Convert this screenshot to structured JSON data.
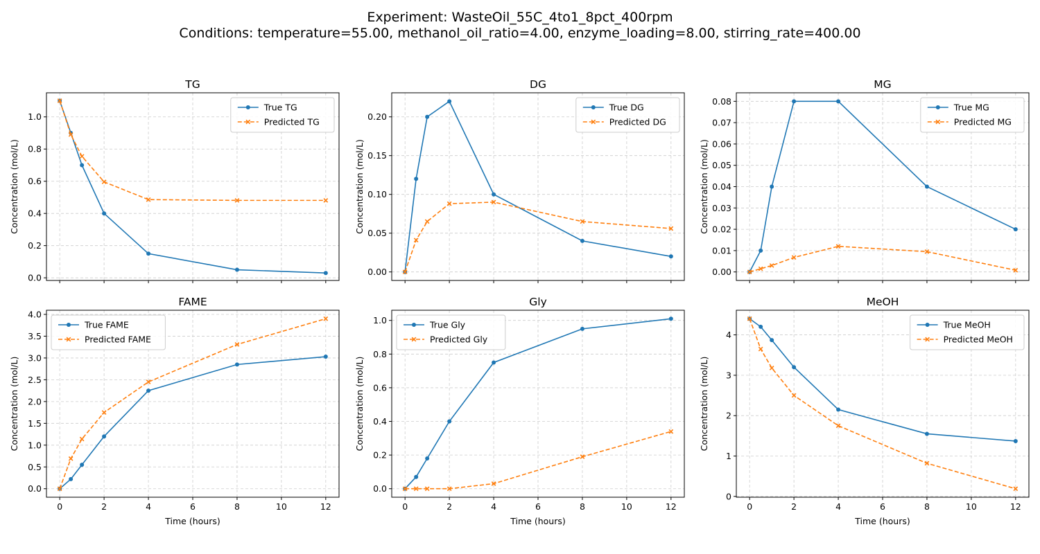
{
  "figure": {
    "title_line1": "Experiment: WasteOil_55C_4to1_8pct_400rpm",
    "title_line2": "Conditions: temperature=55.00, methanol_oil_ratio=4.00, enzyme_loading=8.00, stirring_rate=400.00"
  },
  "colors": {
    "true": "#1f77b4",
    "predicted": "#ff7f0e",
    "grid": "#cccccc"
  },
  "chart_data": [
    {
      "type": "line",
      "title": "TG",
      "xlabel": "",
      "ylabel": "Concentration (mol/L)",
      "x": [
        0,
        0.5,
        1,
        2,
        4,
        8,
        12
      ],
      "xlim": [
        -0.6,
        12.6
      ],
      "ylim": [
        -0.0165,
        1.1495
      ],
      "xticks": [
        0,
        2,
        4,
        6,
        8,
        10,
        12
      ],
      "show_xtick_labels": false,
      "yticks": [
        0.0,
        0.2,
        0.4,
        0.6,
        0.8,
        1.0
      ],
      "ytick_labels": [
        "0.0",
        "0.2",
        "0.4",
        "0.6",
        "0.8",
        "1.0"
      ],
      "grid": true,
      "legend": "top-right",
      "series": [
        {
          "name": "True TG",
          "role": "true",
          "values": [
            1.1,
            0.9,
            0.7,
            0.4,
            0.15,
            0.05,
            0.03
          ]
        },
        {
          "name": "Predicted TG",
          "role": "predicted",
          "values": [
            1.1,
            0.89,
            0.755,
            0.596,
            0.486,
            0.481,
            0.481
          ]
        }
      ]
    },
    {
      "type": "line",
      "title": "DG",
      "xlabel": "",
      "ylabel": "Concentration (mol/L)",
      "x": [
        0,
        0.5,
        1,
        2,
        4,
        8,
        12
      ],
      "xlim": [
        -0.6,
        12.6
      ],
      "ylim": [
        -0.011,
        0.231
      ],
      "xticks": [
        0,
        2,
        4,
        6,
        8,
        10,
        12
      ],
      "show_xtick_labels": false,
      "yticks": [
        0.0,
        0.05,
        0.1,
        0.15,
        0.2
      ],
      "ytick_labels": [
        "0.00",
        "0.05",
        "0.10",
        "0.15",
        "0.20"
      ],
      "grid": true,
      "legend": "top-right",
      "series": [
        {
          "name": "True DG",
          "role": "true",
          "values": [
            0.0,
            0.12,
            0.2,
            0.22,
            0.1,
            0.04,
            0.02
          ]
        },
        {
          "name": "Predicted DG",
          "role": "predicted",
          "values": [
            0.0,
            0.041,
            0.065,
            0.088,
            0.09,
            0.065,
            0.056
          ]
        }
      ]
    },
    {
      "type": "line",
      "title": "MG",
      "xlabel": "",
      "ylabel": "Concentration (mol/L)",
      "x": [
        0,
        0.5,
        1,
        2,
        4,
        8,
        12
      ],
      "xlim": [
        -0.6,
        12.6
      ],
      "ylim": [
        -0.004,
        0.084
      ],
      "xticks": [
        0,
        2,
        4,
        6,
        8,
        10,
        12
      ],
      "show_xtick_labels": false,
      "yticks": [
        0.0,
        0.01,
        0.02,
        0.03,
        0.04,
        0.05,
        0.06,
        0.07,
        0.08
      ],
      "ytick_labels": [
        "0.00",
        "0.01",
        "0.02",
        "0.03",
        "0.04",
        "0.05",
        "0.06",
        "0.07",
        "0.08"
      ],
      "grid": true,
      "legend": "top-right",
      "series": [
        {
          "name": "True MG",
          "role": "true",
          "values": [
            0.0,
            0.01,
            0.04,
            0.08,
            0.08,
            0.04,
            0.02
          ]
        },
        {
          "name": "Predicted MG",
          "role": "predicted",
          "values": [
            0.0,
            0.0015,
            0.003,
            0.0068,
            0.012,
            0.0095,
            0.0008
          ]
        }
      ]
    },
    {
      "type": "line",
      "title": "FAME",
      "xlabel": "Time (hours)",
      "ylabel": "Concentration (mol/L)",
      "x": [
        0,
        0.5,
        1,
        2,
        4,
        8,
        12
      ],
      "xlim": [
        -0.6,
        12.6
      ],
      "ylim": [
        -0.195,
        4.095
      ],
      "xticks": [
        0,
        2,
        4,
        6,
        8,
        10,
        12
      ],
      "show_xtick_labels": true,
      "yticks": [
        0.0,
        0.5,
        1.0,
        1.5,
        2.0,
        2.5,
        3.0,
        3.5,
        4.0
      ],
      "ytick_labels": [
        "0.0",
        "0.5",
        "1.0",
        "1.5",
        "2.0",
        "2.5",
        "3.0",
        "3.5",
        "4.0"
      ],
      "grid": true,
      "legend": "top-left",
      "series": [
        {
          "name": "True FAME",
          "role": "true",
          "values": [
            0.0,
            0.22,
            0.55,
            1.2,
            2.25,
            2.85,
            3.03
          ]
        },
        {
          "name": "Predicted FAME",
          "role": "predicted",
          "values": [
            0.0,
            0.69,
            1.14,
            1.75,
            2.45,
            3.31,
            3.9
          ]
        }
      ]
    },
    {
      "type": "line",
      "title": "Gly",
      "xlabel": "Time (hours)",
      "ylabel": "Concentration (mol/L)",
      "x": [
        0,
        0.5,
        1,
        2,
        4,
        8,
        12
      ],
      "xlim": [
        -0.6,
        12.6
      ],
      "ylim": [
        -0.0505,
        1.0605
      ],
      "xticks": [
        0,
        2,
        4,
        6,
        8,
        10,
        12
      ],
      "show_xtick_labels": true,
      "yticks": [
        0.0,
        0.2,
        0.4,
        0.6,
        0.8,
        1.0
      ],
      "ytick_labels": [
        "0.0",
        "0.2",
        "0.4",
        "0.6",
        "0.8",
        "1.0"
      ],
      "grid": true,
      "legend": "top-left",
      "series": [
        {
          "name": "True Gly",
          "role": "true",
          "values": [
            0.0,
            0.07,
            0.18,
            0.4,
            0.75,
            0.95,
            1.01
          ]
        },
        {
          "name": "Predicted Gly",
          "role": "predicted",
          "values": [
            0.0,
            0.0,
            0.0,
            0.0,
            0.03,
            0.19,
            0.34
          ]
        }
      ]
    },
    {
      "type": "line",
      "title": "MeOH",
      "xlabel": "Time (hours)",
      "ylabel": "Concentration (mol/L)",
      "x": [
        0,
        0.5,
        1,
        2,
        4,
        8,
        12
      ],
      "xlim": [
        -0.6,
        12.6
      ],
      "ylim": [
        -0.02,
        4.61
      ],
      "xticks": [
        0,
        2,
        4,
        6,
        8,
        10,
        12
      ],
      "show_xtick_labels": true,
      "yticks": [
        0,
        1,
        2,
        3,
        4
      ],
      "ytick_labels": [
        "0",
        "1",
        "2",
        "3",
        "4"
      ],
      "grid": true,
      "legend": "top-right",
      "series": [
        {
          "name": "True MeOH",
          "role": "true",
          "values": [
            4.4,
            4.2,
            3.87,
            3.2,
            2.15,
            1.55,
            1.37
          ]
        },
        {
          "name": "Predicted MeOH",
          "role": "predicted",
          "values": [
            4.4,
            3.65,
            3.18,
            2.5,
            1.75,
            0.82,
            0.19
          ]
        }
      ]
    }
  ]
}
